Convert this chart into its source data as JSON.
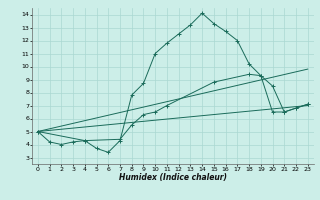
{
  "title": "",
  "xlabel": "Humidex (Indice chaleur)",
  "bg_color": "#cceee8",
  "grid_color": "#aad8d2",
  "line_color": "#1a6b5a",
  "xlim": [
    -0.5,
    23.5
  ],
  "ylim": [
    2.5,
    14.5
  ],
  "xticks": [
    0,
    1,
    2,
    3,
    4,
    5,
    6,
    7,
    8,
    9,
    10,
    11,
    12,
    13,
    14,
    15,
    16,
    17,
    18,
    19,
    20,
    21,
    22,
    23
  ],
  "yticks": [
    3,
    4,
    5,
    6,
    7,
    8,
    9,
    10,
    11,
    12,
    13,
    14
  ],
  "main_x": [
    0,
    1,
    2,
    3,
    4,
    5,
    6,
    7,
    8,
    9,
    10,
    11,
    12,
    13,
    14,
    15,
    16,
    17,
    18,
    19,
    20,
    21,
    22,
    23
  ],
  "main_y": [
    5.0,
    4.2,
    4.0,
    4.2,
    4.3,
    3.7,
    3.4,
    4.3,
    7.8,
    8.7,
    11.0,
    11.8,
    12.5,
    13.2,
    14.1,
    13.3,
    12.7,
    12.0,
    10.2,
    9.3,
    6.5,
    6.5,
    6.8,
    7.1
  ],
  "line1_x": [
    0,
    23
  ],
  "line1_y": [
    5.0,
    7.0
  ],
  "line2_x": [
    0,
    23
  ],
  "line2_y": [
    5.0,
    9.8
  ],
  "seg_x": [
    0,
    4,
    7,
    8,
    9,
    10,
    11,
    15,
    18,
    19,
    20,
    21,
    22,
    23
  ],
  "seg_y": [
    5.0,
    4.3,
    4.4,
    5.5,
    6.3,
    6.5,
    7.0,
    8.8,
    9.4,
    9.3,
    8.5,
    6.5,
    6.8,
    7.1
  ]
}
